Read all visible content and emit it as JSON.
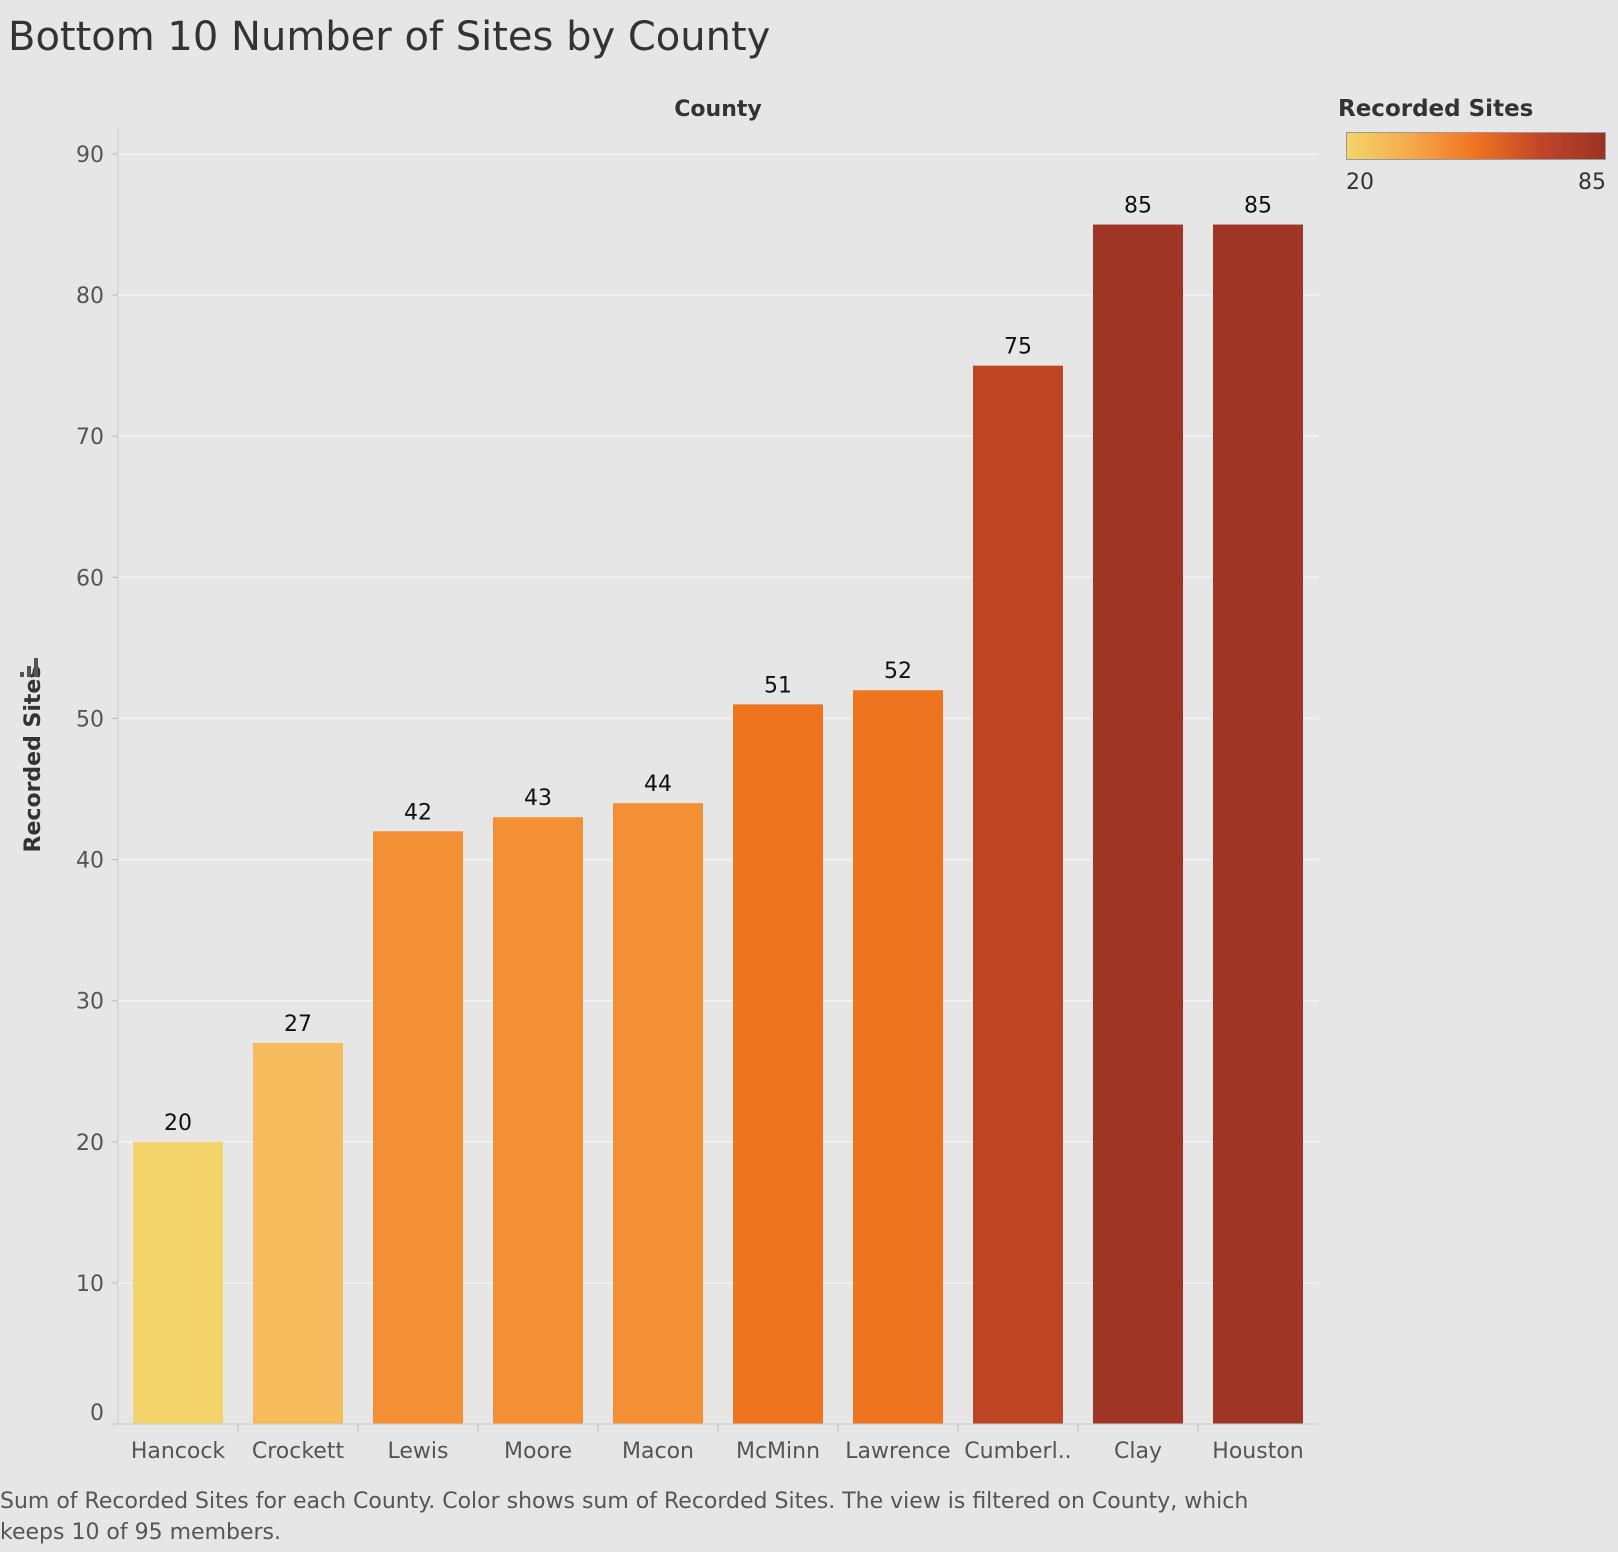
{
  "title": "Bottom 10 Number of Sites by County",
  "caption": "Sum of Recorded Sites for each County.  Color shows sum of Recorded Sites. The view is filtered on County, which keeps 10 of 95 members.",
  "legend": {
    "title": "Recorded Sites",
    "min_label": "20",
    "max_label": "85",
    "gradient_colors": [
      "#f3d46a",
      "#f6a84b",
      "#ef7320",
      "#c2452a",
      "#9a3324"
    ]
  },
  "chart_data": {
    "type": "bar",
    "title": "Bottom 10 Number of Sites by County",
    "xlabel": "County",
    "ylabel": "Recorded Sites",
    "categories": [
      "Hancock",
      "Crockett",
      "Lewis",
      "Moore",
      "Macon",
      "McMinn",
      "Lawrence",
      "Cumberl..",
      "Clay",
      "Houston"
    ],
    "values": [
      20,
      27,
      42,
      43,
      44,
      51,
      52,
      75,
      85,
      85
    ],
    "data_labels": [
      "20",
      "27",
      "42",
      "43",
      "44",
      "51",
      "52",
      "75",
      "85",
      "85"
    ],
    "bar_colors": [
      "#f3d46a",
      "#f6bb5d",
      "#f39035",
      "#f39035",
      "#f39035",
      "#ee7420",
      "#ee7420",
      "#bd4524",
      "#9f3625",
      "#9f3625"
    ],
    "ylim": [
      0,
      90
    ],
    "yticks": [
      0,
      10,
      20,
      30,
      40,
      50,
      60,
      70,
      80,
      90
    ],
    "grid": true,
    "legend_position": "top-right"
  }
}
